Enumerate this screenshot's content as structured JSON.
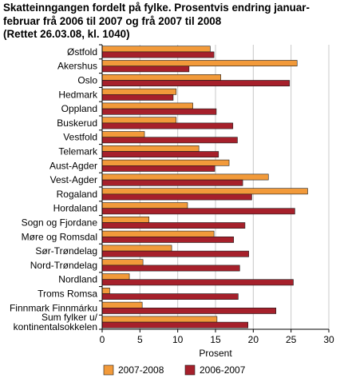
{
  "chart_data": {
    "type": "bar",
    "orientation": "horizontal",
    "title_lines": [
      "Skatteinngangen fordelt på fylke. Prosentvis endring januar-",
      "februar frå 2006 til 2007 og frå 2007 til 2008",
      "(Rettet 26.03.08, kl. 1040)"
    ],
    "categories": [
      [
        "Østfold"
      ],
      [
        "Akershus"
      ],
      [
        "Oslo"
      ],
      [
        "Hedmark"
      ],
      [
        "Oppland"
      ],
      [
        "Buskerud"
      ],
      [
        "Vestfold"
      ],
      [
        "Telemark"
      ],
      [
        "Aust-Agder"
      ],
      [
        "Vest-Agder"
      ],
      [
        "Rogaland"
      ],
      [
        "Hordaland"
      ],
      [
        "Sogn og Fjordane"
      ],
      [
        "Møre og Romsdal"
      ],
      [
        "Sør-Trøndelag"
      ],
      [
        "Nord-Trøndelag"
      ],
      [
        "Nordland"
      ],
      [
        "Troms Romsa"
      ],
      [
        "Finnmark Finnmárku"
      ],
      [
        "Sum fylker u/",
        "kontinentalsokkelen"
      ]
    ],
    "series": [
      {
        "name": "2007-2008",
        "color": "#f29a3a",
        "values": [
          14.3,
          25.8,
          15.7,
          9.8,
          12.0,
          9.8,
          5.6,
          12.8,
          16.8,
          22.0,
          27.2,
          11.3,
          6.2,
          14.8,
          9.2,
          5.4,
          3.6,
          1.0,
          5.3,
          15.2
        ]
      },
      {
        "name": "2006-2007",
        "color": "#a6202b",
        "values": [
          14.8,
          11.5,
          24.8,
          9.4,
          15.1,
          17.3,
          17.9,
          15.4,
          14.9,
          18.6,
          19.8,
          25.5,
          18.9,
          17.4,
          19.4,
          18.2,
          25.3,
          18.0,
          23.0,
          19.3
        ]
      }
    ],
    "xlabel": "Prosent",
    "xlim": [
      0,
      30
    ],
    "xticks": [
      0,
      5,
      10,
      15,
      20,
      25,
      30
    ],
    "grid": "vertical",
    "legend_position": "bottom"
  }
}
